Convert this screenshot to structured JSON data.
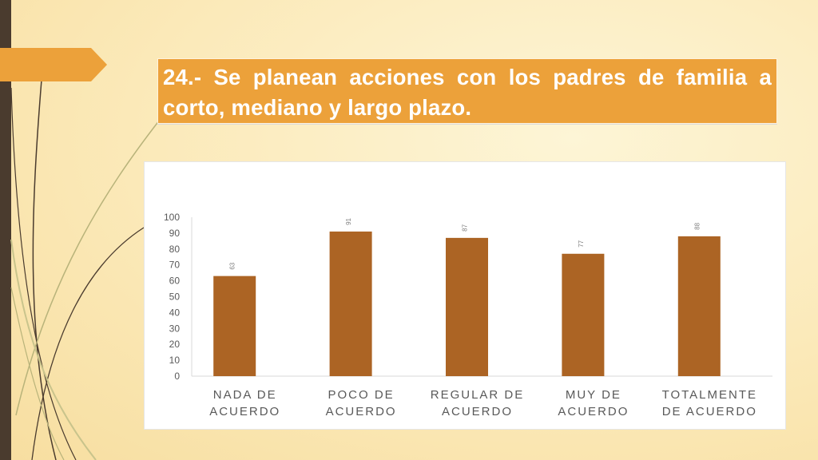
{
  "title": "24.- Se planean acciones con los padres de familia a corto, mediano y largo plazo.",
  "colors": {
    "accent": "#eca13a",
    "bar": "#ac6424",
    "left_bar": "#4a3b2e"
  },
  "chart_data": {
    "type": "bar",
    "categories": [
      "NADA DE ACUERDO",
      "POCO DE ACUERDO",
      "REGULAR DE ACUERDO",
      "MUY DE ACUERDO",
      "TOTALMENTE DE ACUERDO"
    ],
    "category_lines": [
      [
        "NADA DE",
        "ACUERDO"
      ],
      [
        "POCO DE",
        "ACUERDO"
      ],
      [
        "REGULAR DE",
        "ACUERDO"
      ],
      [
        "MUY DE",
        "ACUERDO"
      ],
      [
        "TOTALMENTE",
        "DE ACUERDO"
      ]
    ],
    "values": [
      63,
      91,
      87,
      77,
      88
    ],
    "ylim": [
      0,
      100
    ],
    "yticks": [
      0,
      10,
      20,
      30,
      40,
      50,
      60,
      70,
      80,
      90,
      100
    ],
    "data_labels": true,
    "grid": false,
    "legend": "none"
  }
}
